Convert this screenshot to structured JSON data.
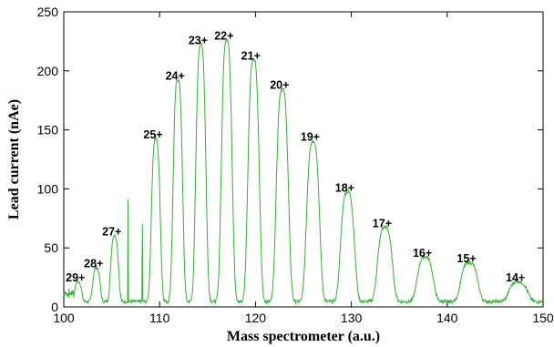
{
  "chart_data": {
    "type": "line",
    "title": "",
    "xlabel": "Mass spectrometer (a.u.)",
    "ylabel": "Lead current (nAe)",
    "xlim": [
      100,
      150
    ],
    "ylim": [
      0,
      250
    ],
    "x_ticks": [
      100,
      110,
      120,
      130,
      140,
      150
    ],
    "y_ticks": [
      0,
      50,
      100,
      150,
      200,
      250
    ],
    "grid": false,
    "legend": "none",
    "line_color": "#33b033",
    "series": [
      {
        "peaks": [
          {
            "label": "29+",
            "x": 101.5,
            "y": 17
          },
          {
            "label": "28+",
            "x": 103.4,
            "y": 29
          },
          {
            "label": "27+",
            "x": 105.3,
            "y": 56
          },
          {
            "label": "25+",
            "x": 109.6,
            "y": 138
          },
          {
            "label": "24+",
            "x": 111.9,
            "y": 188
          },
          {
            "label": "23+",
            "x": 114.3,
            "y": 218
          },
          {
            "label": "22+",
            "x": 117.0,
            "y": 222
          },
          {
            "label": "21+",
            "x": 119.8,
            "y": 205
          },
          {
            "label": "20+",
            "x": 122.8,
            "y": 180
          },
          {
            "label": "19+",
            "x": 126.0,
            "y": 136
          },
          {
            "label": "18+",
            "x": 129.6,
            "y": 93
          },
          {
            "label": "17+",
            "x": 133.5,
            "y": 63
          },
          {
            "label": "16+",
            "x": 137.7,
            "y": 38
          },
          {
            "label": "15+",
            "x": 142.3,
            "y": 33
          },
          {
            "label": "14+",
            "x": 147.4,
            "y": 17
          }
        ],
        "spikes": [
          {
            "x": 106.7,
            "y": 91
          },
          {
            "x": 108.2,
            "y": 70
          }
        ]
      }
    ]
  }
}
